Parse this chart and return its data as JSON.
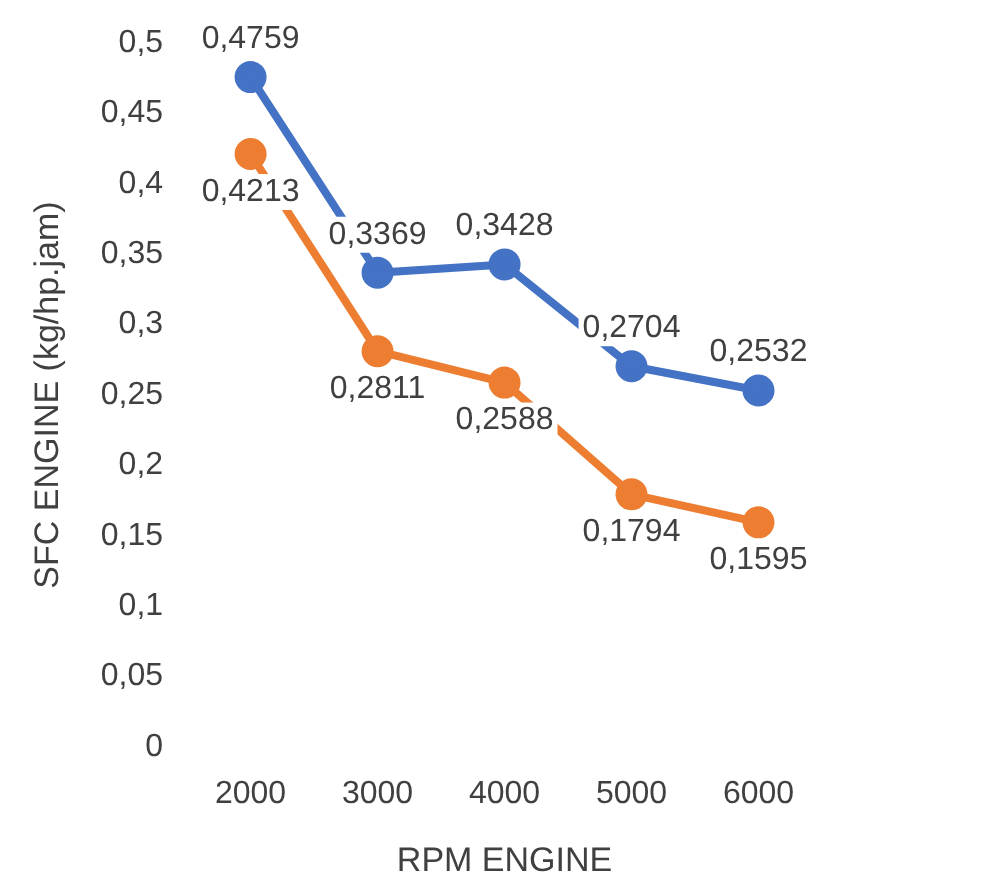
{
  "chart_data": {
    "type": "line",
    "xlabel": "RPM ENGINE",
    "ylabel": "SFC ENGINE (kg/hp.jam)",
    "categories": [
      "2000",
      "3000",
      "4000",
      "5000",
      "6000"
    ],
    "series": [
      {
        "color": "#4472c4",
        "values": [
          0.4759,
          0.3369,
          0.3428,
          0.2704,
          0.2532
        ],
        "value_labels": [
          "0,4759",
          "0,3369",
          "0,3428",
          "0,2704",
          "0,2532"
        ]
      },
      {
        "color": "#ed7d31",
        "values": [
          0.4213,
          0.2811,
          0.2588,
          0.1794,
          0.1595
        ],
        "value_labels": [
          "0,4213",
          "0,2811",
          "0,2588",
          "0,1794",
          "0,1595"
        ]
      }
    ],
    "ylim": [
      0,
      0.5
    ],
    "yticks": [
      0,
      {
        "value": 0.05,
        "label": "0,05"
      },
      {
        "value": 0.1,
        "label": "0,1"
      },
      {
        "value": 0.15,
        "label": "0,15"
      },
      {
        "value": 0.2,
        "label": "0,2"
      },
      {
        "value": 0.25,
        "label": "0,25"
      },
      {
        "value": 0.3,
        "label": "0,3"
      },
      {
        "value": 0.35,
        "label": "0,35"
      },
      {
        "value": 0.4,
        "label": "0,4"
      },
      {
        "value": 0.45,
        "label": "0,45"
      },
      {
        "value": 0.5,
        "label": "0,5"
      }
    ],
    "grid": false,
    "legend": false,
    "marker": "circle",
    "line_style": "solid"
  }
}
